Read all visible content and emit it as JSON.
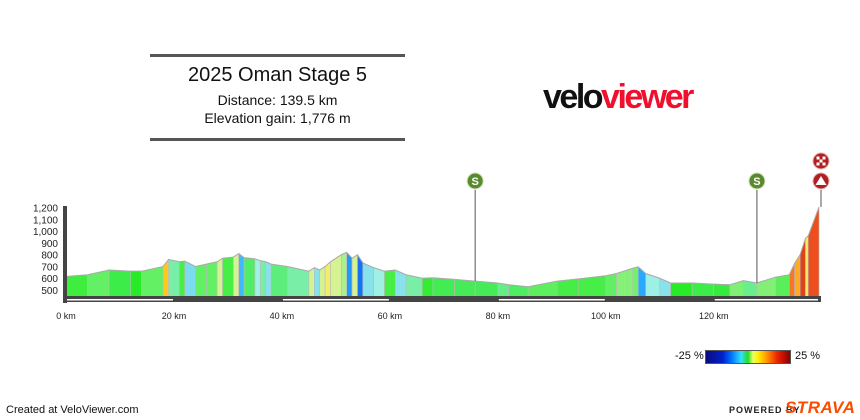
{
  "header": {
    "title": "2025 Oman Stage 5",
    "distance": "Distance: 139.5 km",
    "elevation_gain": "Elevation gain: 1,776 m"
  },
  "logo": {
    "part1": "velo",
    "part2": "viewer"
  },
  "legend": {
    "min_label": "-25 %",
    "max_label": "25 %"
  },
  "footer": {
    "created": "Created at VeloViewer.com",
    "powered_by": "POWERED BY",
    "strava": "STRAVA"
  },
  "colors": {
    "strava": "#fc4c02",
    "veloviewer_red": "#f0102e",
    "sprint_marker": "#5a8a2e",
    "finish_marker": "#b02020"
  },
  "chart_data": {
    "type": "area",
    "xlabel": "",
    "ylabel": "",
    "xlim": [
      0,
      139.5
    ],
    "ylim": [
      440,
      1200
    ],
    "x_ticks": [
      "0 km",
      "20 km",
      "40 km",
      "60 km",
      "80 km",
      "100 km",
      "120 km"
    ],
    "x_tick_values": [
      0,
      20,
      40,
      60,
      80,
      100,
      120
    ],
    "y_ticks": [
      "1,200",
      "1,100",
      "1,000",
      "900",
      "800",
      "700",
      "600",
      "500"
    ],
    "y_tick_values": [
      1200,
      1100,
      1000,
      900,
      800,
      700,
      600,
      500
    ],
    "color_by": "gradient percent (-25 % to 25 %)",
    "points": [
      [
        0,
        615
      ],
      [
        4,
        630
      ],
      [
        8,
        670
      ],
      [
        12,
        660
      ],
      [
        14,
        660
      ],
      [
        18,
        700
      ],
      [
        19,
        760
      ],
      [
        21,
        740
      ],
      [
        22,
        745
      ],
      [
        24,
        700
      ],
      [
        26,
        720
      ],
      [
        28,
        740
      ],
      [
        29,
        770
      ],
      [
        31,
        780
      ],
      [
        32,
        810
      ],
      [
        33,
        775
      ],
      [
        35,
        765
      ],
      [
        36,
        750
      ],
      [
        37,
        740
      ],
      [
        38,
        720
      ],
      [
        41,
        700
      ],
      [
        45,
        660
      ],
      [
        46,
        690
      ],
      [
        47,
        670
      ],
      [
        48,
        700
      ],
      [
        49,
        740
      ],
      [
        51,
        800
      ],
      [
        52,
        820
      ],
      [
        53,
        770
      ],
      [
        54,
        800
      ],
      [
        55,
        730
      ],
      [
        57,
        690
      ],
      [
        59,
        660
      ],
      [
        61,
        670
      ],
      [
        63,
        630
      ],
      [
        66,
        600
      ],
      [
        68,
        604
      ],
      [
        72,
        590
      ],
      [
        75.8,
        576
      ],
      [
        80,
        560
      ],
      [
        82,
        545
      ],
      [
        85.6,
        528
      ],
      [
        91,
        576
      ],
      [
        95,
        595
      ],
      [
        100,
        621
      ],
      [
        102,
        640
      ],
      [
        104,
        670
      ],
      [
        105,
        685
      ],
      [
        106,
        697
      ],
      [
        107.4,
        640
      ],
      [
        110,
        600
      ],
      [
        112,
        560
      ],
      [
        116,
        560
      ],
      [
        120,
        550
      ],
      [
        123,
        545
      ],
      [
        125.5,
        580
      ],
      [
        128,
        560
      ],
      [
        131.5,
        610
      ],
      [
        134,
        630
      ],
      [
        135,
        728
      ],
      [
        136,
        800
      ],
      [
        137,
        940
      ],
      [
        137.5,
        960
      ],
      [
        139.5,
        1206
      ]
    ],
    "markers": [
      {
        "type": "sprint",
        "label": "S",
        "km": 75.8
      },
      {
        "type": "sprint",
        "label": "S",
        "km": 128
      },
      {
        "type": "finish",
        "label": "",
        "km": 139.5
      },
      {
        "type": "mountain-summit",
        "label": "",
        "km": 139.5
      }
    ]
  }
}
